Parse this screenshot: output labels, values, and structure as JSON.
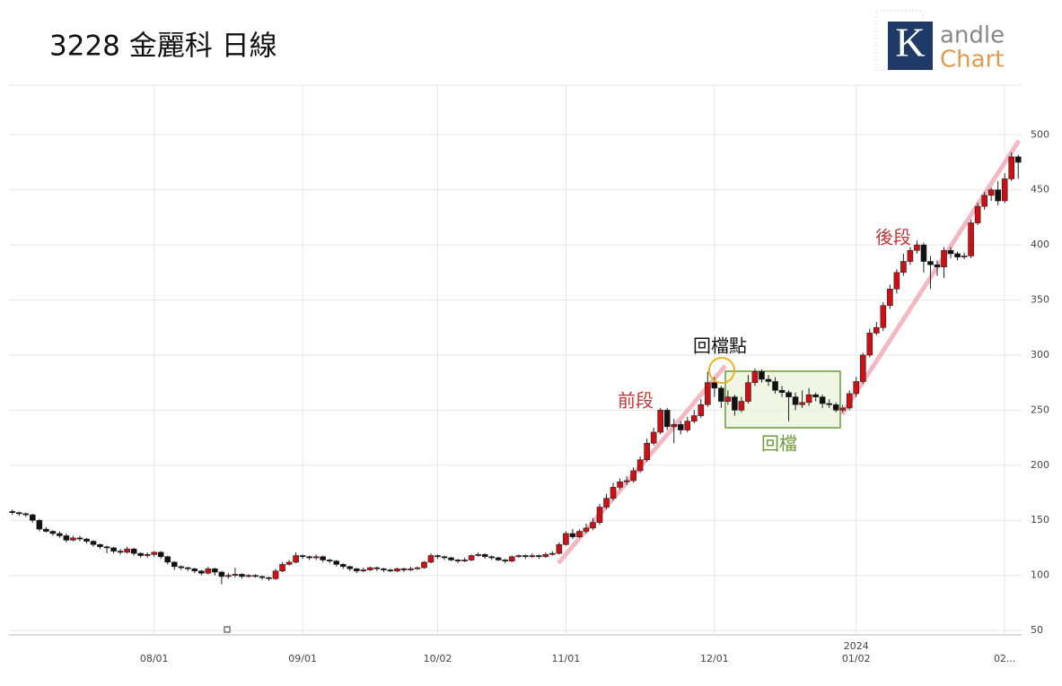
{
  "chart_data": {
    "type": "candlestick",
    "title": "3228 金麗科 日線",
    "logo": {
      "mark": "K",
      "line1": "andle",
      "line2": "Chart"
    },
    "annotations": {
      "early": "前段",
      "pullback_point": "回檔點",
      "pullback": "回檔",
      "late": "後段",
      "year": "2024"
    },
    "up_color": "#cc1016",
    "down_color": "#111111",
    "grid": true,
    "ylim": [
      46,
      545
    ],
    "yticks": [
      50,
      100,
      150,
      200,
      250,
      300,
      350,
      400,
      450,
      500
    ],
    "categories": [
      null,
      null,
      null,
      null,
      null,
      null,
      null,
      null,
      null,
      null,
      null,
      null,
      null,
      null,
      null,
      null,
      null,
      null,
      null,
      null,
      null,
      "08/01",
      null,
      null,
      null,
      null,
      null,
      null,
      null,
      null,
      null,
      null,
      null,
      null,
      null,
      null,
      null,
      null,
      null,
      null,
      null,
      null,
      null,
      "09/01",
      null,
      null,
      null,
      null,
      null,
      null,
      null,
      null,
      null,
      null,
      null,
      null,
      null,
      null,
      null,
      null,
      null,
      null,
      null,
      "10/02",
      null,
      null,
      null,
      null,
      null,
      null,
      null,
      null,
      null,
      null,
      null,
      null,
      null,
      null,
      null,
      null,
      null,
      null,
      "11/01",
      null,
      null,
      null,
      null,
      null,
      null,
      null,
      null,
      null,
      null,
      null,
      null,
      null,
      null,
      null,
      null,
      null,
      null,
      null,
      null,
      null,
      "12/01",
      null,
      null,
      null,
      null,
      null,
      null,
      null,
      null,
      null,
      null,
      null,
      null,
      null,
      null,
      null,
      null,
      null,
      null,
      null,
      null,
      "01/02",
      null,
      null,
      null,
      null,
      null,
      null,
      null,
      null,
      null,
      null,
      null,
      null,
      null,
      null,
      null,
      null,
      null,
      null,
      null,
      null,
      null,
      "02...",
      null,
      null
    ],
    "open": [
      158,
      157,
      156,
      155,
      150,
      142,
      140,
      138,
      136,
      132,
      134,
      133,
      131,
      128,
      126,
      125,
      122,
      121,
      124,
      120,
      118,
      119,
      121,
      117,
      112,
      108,
      107,
      106,
      104,
      102,
      106,
      103,
      99,
      100,
      101,
      99,
      100,
      99,
      98,
      97,
      104,
      110,
      112,
      118,
      117,
      116,
      117,
      114,
      113,
      110,
      108,
      106,
      104,
      105,
      107,
      106,
      105,
      104,
      106,
      105,
      106,
      107,
      112,
      118,
      117,
      116,
      114,
      113,
      114,
      118,
      119,
      117,
      116,
      114,
      113,
      117,
      118,
      117,
      118,
      117,
      119,
      120,
      128,
      138,
      135,
      140,
      143,
      148,
      162,
      170,
      180,
      185,
      186,
      195,
      205,
      220,
      230,
      250,
      235,
      237,
      232,
      240,
      245,
      255,
      275,
      270,
      258,
      262,
      250,
      258,
      275,
      285,
      278,
      276,
      268,
      266,
      262,
      255,
      257,
      264,
      262,
      256,
      255,
      250,
      252,
      265,
      276,
      300,
      320,
      325,
      345,
      360,
      375,
      385,
      395,
      400,
      385,
      382,
      380,
      395,
      392,
      389,
      390,
      420,
      435,
      445,
      450,
      440,
      460,
      480
    ],
    "close": [
      157,
      156,
      155,
      150,
      142,
      140,
      138,
      136,
      132,
      134,
      133,
      131,
      128,
      126,
      125,
      122,
      121,
      124,
      120,
      118,
      119,
      121,
      117,
      112,
      108,
      107,
      106,
      104,
      102,
      106,
      103,
      99,
      100,
      101,
      99,
      100,
      99,
      98,
      97,
      104,
      110,
      112,
      118,
      117,
      116,
      117,
      114,
      113,
      110,
      108,
      106,
      104,
      105,
      107,
      106,
      105,
      104,
      106,
      105,
      106,
      107,
      112,
      118,
      117,
      116,
      114,
      113,
      114,
      118,
      119,
      117,
      116,
      114,
      113,
      117,
      118,
      117,
      118,
      117,
      119,
      120,
      128,
      138,
      135,
      140,
      143,
      148,
      162,
      170,
      180,
      185,
      186,
      195,
      205,
      220,
      230,
      250,
      235,
      237,
      232,
      240,
      245,
      255,
      275,
      270,
      258,
      262,
      250,
      258,
      275,
      285,
      278,
      276,
      268,
      266,
      262,
      255,
      257,
      264,
      262,
      256,
      255,
      250,
      252,
      265,
      276,
      300,
      320,
      325,
      345,
      360,
      375,
      385,
      395,
      400,
      385,
      382,
      380,
      395,
      392,
      389,
      390,
      420,
      435,
      445,
      450,
      440,
      460,
      480,
      475
    ],
    "high": [
      160,
      158,
      157,
      156,
      151,
      144,
      141,
      140,
      138,
      136,
      136,
      134,
      132,
      129,
      127,
      126,
      124,
      126,
      125,
      121,
      121,
      122,
      122,
      118,
      113,
      109,
      108,
      107,
      105,
      108,
      107,
      104,
      102,
      107,
      102,
      101,
      101,
      100,
      99,
      106,
      112,
      114,
      121,
      119,
      118,
      119,
      118,
      115,
      114,
      111,
      109,
      107,
      107,
      108,
      108,
      107,
      106,
      107,
      107,
      108,
      108,
      113,
      120,
      119,
      118,
      117,
      115,
      116,
      119,
      121,
      120,
      118,
      117,
      115,
      118,
      119,
      119,
      120,
      119,
      121,
      122,
      130,
      140,
      142,
      142,
      147,
      152,
      165,
      174,
      184,
      188,
      190,
      198,
      208,
      224,
      234,
      252,
      252,
      242,
      240,
      244,
      250,
      260,
      285,
      280,
      272,
      268,
      264,
      262,
      282,
      288,
      287,
      282,
      280,
      272,
      268,
      266,
      268,
      270,
      266,
      264,
      260,
      257,
      255,
      268,
      280,
      302,
      324,
      330,
      348,
      364,
      378,
      392,
      398,
      404,
      402,
      390,
      386,
      398,
      398,
      394,
      393,
      423,
      438,
      448,
      452,
      458,
      465,
      484,
      482
    ],
    "low": [
      155,
      154,
      153,
      148,
      140,
      139,
      136,
      134,
      130,
      131,
      131,
      129,
      126,
      124,
      120,
      120,
      119,
      120,
      118,
      116,
      116,
      117,
      115,
      110,
      105,
      105,
      104,
      102,
      100,
      101,
      100,
      92,
      97,
      98,
      97,
      98,
      98,
      96,
      95,
      96,
      103,
      109,
      111,
      115,
      114,
      114,
      112,
      111,
      108,
      106,
      104,
      102,
      103,
      104,
      104,
      103,
      103,
      103,
      103,
      104,
      105,
      106,
      111,
      115,
      114,
      113,
      111,
      112,
      113,
      117,
      115,
      114,
      113,
      111,
      112,
      116,
      115,
      116,
      115,
      116,
      118,
      119,
      127,
      133,
      134,
      138,
      141,
      146,
      160,
      168,
      178,
      182,
      184,
      193,
      203,
      218,
      228,
      232,
      220,
      228,
      230,
      238,
      243,
      253,
      262,
      252,
      255,
      245,
      248,
      256,
      272,
      275,
      272,
      265,
      262,
      240,
      250,
      252,
      254,
      258,
      252,
      252,
      248,
      248,
      250,
      262,
      274,
      298,
      318,
      322,
      342,
      356,
      372,
      382,
      392,
      375,
      360,
      372,
      370,
      388,
      386,
      387,
      388,
      418,
      432,
      440,
      436,
      438,
      458,
      460
    ]
  }
}
